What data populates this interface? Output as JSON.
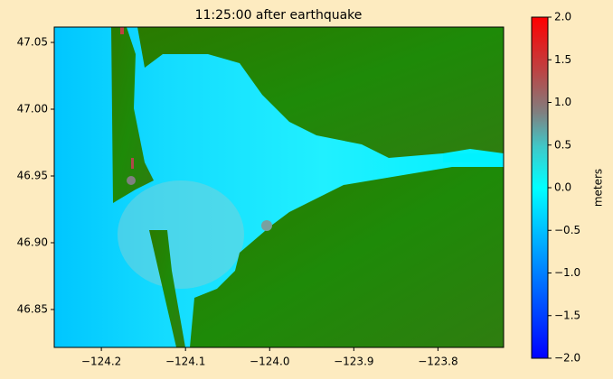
{
  "chart_data": {
    "type": "map",
    "title": "11:25:00 after earthquake",
    "xlim": [
      -124.256,
      -123.722
    ],
    "xticks": [
      {
        "value": -124.2,
        "label": "−124.2"
      },
      {
        "value": -124.1,
        "label": "−124.1"
      },
      {
        "value": -124.0,
        "label": "−124.0"
      },
      {
        "value": -123.9,
        "label": "−123.9"
      },
      {
        "value": -123.8,
        "label": "−123.8"
      }
    ],
    "ylim": [
      46.8216,
      47.0615
    ],
    "yticks": [
      {
        "value": 46.85,
        "label": "46.85"
      },
      {
        "value": 46.9,
        "label": "46.90"
      },
      {
        "value": 46.95,
        "label": "46.95"
      },
      {
        "value": 47.0,
        "label": "47.00"
      },
      47.05
    ],
    "colorbar": {
      "label": "meters",
      "lim": [
        -2.0,
        2.0
      ],
      "ticks": [
        {
          "value": -2.0,
          "label": "−2.0"
        },
        {
          "value": -1.5,
          "label": "−1.5"
        },
        {
          "value": -1.0,
          "label": "−1.0"
        },
        {
          "value": -0.5,
          "label": "−0.5"
        },
        {
          "value": 0.0,
          "label": "0.0"
        },
        0.5,
        {
          "value": 1.0,
          "label": "1.0"
        },
        1.5,
        {
          "value": 2.0,
          "label": "2.0"
        }
      ]
    }
  }
}
